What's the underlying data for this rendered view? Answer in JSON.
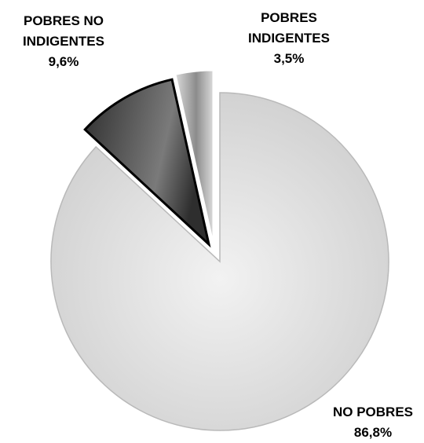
{
  "chart_data": {
    "type": "pie",
    "title": "",
    "slices": [
      {
        "label_line1": "NO POBRES",
        "label_line2": "",
        "value": 86.8,
        "value_label": "86,8%",
        "color_light": "#f2f2f2",
        "color_dark": "#cfcfcf",
        "exploded": false
      },
      {
        "label_line1": "POBRES NO",
        "label_line2": "INDIGENTES",
        "value": 9.6,
        "value_label": "9,6%",
        "color_light": "#7a7a7a",
        "color_dark": "#2e2e2e",
        "exploded": true
      },
      {
        "label_line1": "POBRES",
        "label_line2": "INDIGENTES",
        "value": 3.5,
        "value_label": "3,5%",
        "color_light": "#d8d8d8",
        "color_dark": "#8c8c8c",
        "exploded": true
      }
    ],
    "start_angle_deg": 0,
    "direction": "clockwise",
    "legend": "none"
  }
}
